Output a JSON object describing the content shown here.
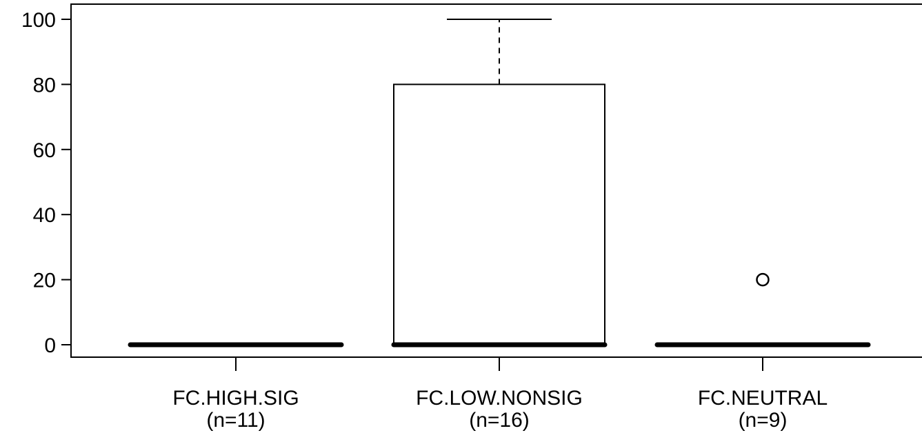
{
  "chart_data": {
    "type": "box",
    "categories": [
      {
        "label": "FC.HIGH.SIG",
        "n_label": "(n=11)"
      },
      {
        "label": "FC.LOW.NONSIG",
        "n_label": "(n=16)"
      },
      {
        "label": "FC.NEUTRAL",
        "n_label": "(n=9)"
      }
    ],
    "boxes": [
      {
        "min": 0,
        "q1": 0,
        "median": 0,
        "q3": 0,
        "max": 0,
        "outliers": []
      },
      {
        "min": 0,
        "q1": 0,
        "median": 0,
        "q3": 80,
        "max": 100,
        "outliers": []
      },
      {
        "min": 0,
        "q1": 0,
        "median": 0,
        "q3": 0,
        "max": 0,
        "outliers": [
          20
        ]
      }
    ],
    "yticks": [
      0,
      20,
      40,
      60,
      80,
      100
    ],
    "ylim": [
      -4,
      106
    ],
    "xlabel": "",
    "ylabel": "",
    "title": "",
    "grid": false
  }
}
